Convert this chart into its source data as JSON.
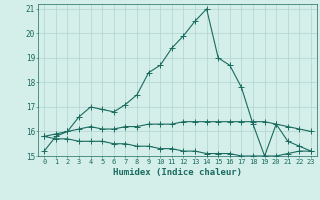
{
  "title": "",
  "xlabel": "Humidex (Indice chaleur)",
  "ylabel": "",
  "bg_color": "#d4eeea",
  "grid_color": "#b0d4d0",
  "line_color": "#1a6b5f",
  "xlim": [
    -0.5,
    23.5
  ],
  "ylim": [
    15,
    21.2
  ],
  "yticks": [
    15,
    16,
    17,
    18,
    19,
    20,
    21
  ],
  "xticks": [
    0,
    1,
    2,
    3,
    4,
    5,
    6,
    7,
    8,
    9,
    10,
    11,
    12,
    13,
    14,
    15,
    16,
    17,
    18,
    19,
    20,
    21,
    22,
    23
  ],
  "line1_x": [
    0,
    1,
    2,
    3,
    4,
    5,
    6,
    7,
    8,
    9,
    10,
    11,
    12,
    13,
    14,
    15,
    16,
    17,
    18,
    19,
    20,
    21,
    22,
    23
  ],
  "line1_y": [
    15.2,
    15.8,
    16.0,
    16.6,
    17.0,
    16.9,
    16.8,
    17.1,
    17.5,
    18.4,
    18.7,
    19.4,
    19.9,
    20.5,
    21.0,
    19.0,
    18.7,
    17.8,
    16.3,
    15.0,
    16.3,
    15.6,
    15.4,
    15.2
  ],
  "line2_x": [
    0,
    1,
    2,
    3,
    4,
    5,
    6,
    7,
    8,
    9,
    10,
    11,
    12,
    13,
    14,
    15,
    16,
    17,
    18,
    19,
    20,
    21,
    22,
    23
  ],
  "line2_y": [
    15.8,
    15.9,
    16.0,
    16.1,
    16.2,
    16.1,
    16.1,
    16.2,
    16.2,
    16.3,
    16.3,
    16.3,
    16.4,
    16.4,
    16.4,
    16.4,
    16.4,
    16.4,
    16.4,
    16.4,
    16.3,
    16.2,
    16.1,
    16.0
  ],
  "line3_x": [
    0,
    1,
    2,
    3,
    4,
    5,
    6,
    7,
    8,
    9,
    10,
    11,
    12,
    13,
    14,
    15,
    16,
    17,
    18,
    19,
    20,
    21,
    22,
    23
  ],
  "line3_y": [
    15.8,
    15.7,
    15.7,
    15.6,
    15.6,
    15.6,
    15.5,
    15.5,
    15.4,
    15.4,
    15.3,
    15.3,
    15.2,
    15.2,
    15.1,
    15.1,
    15.1,
    15.0,
    15.0,
    15.0,
    15.0,
    15.1,
    15.2,
    15.2
  ],
  "marker_size": 4,
  "line_width": 0.8,
  "font_size_label": 6.5,
  "font_size_tick": 5.5
}
